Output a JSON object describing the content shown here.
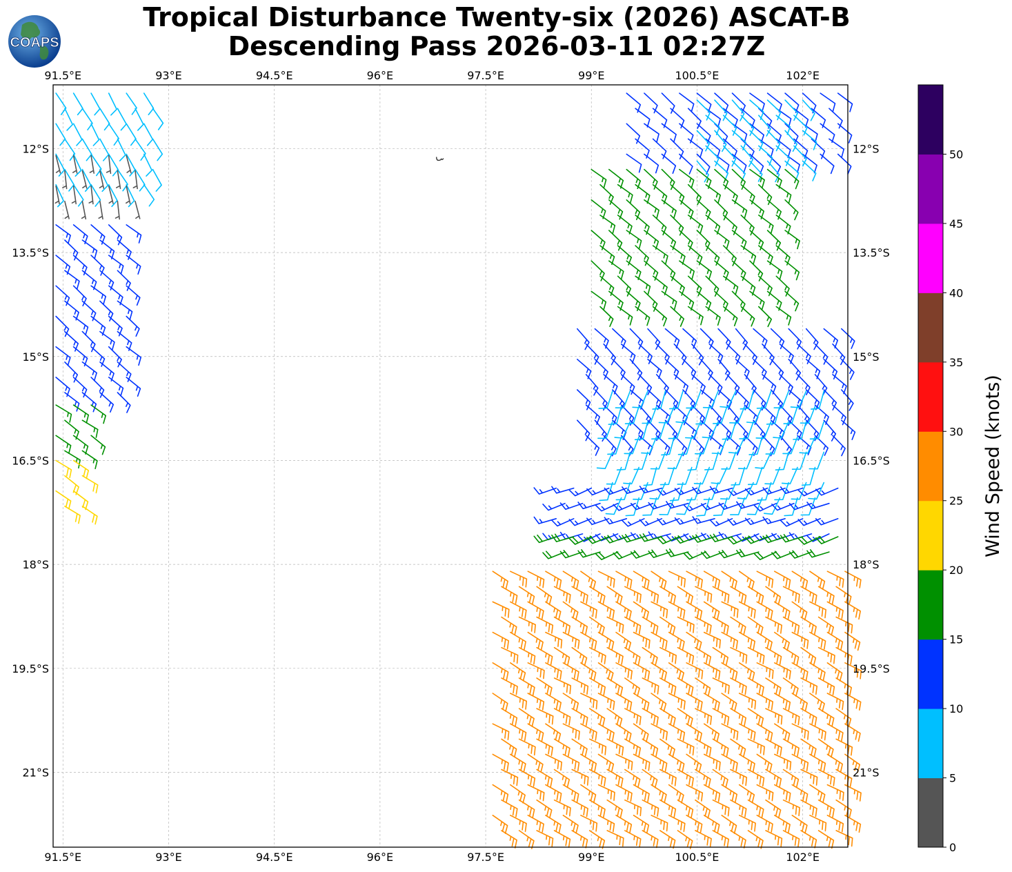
{
  "header": {
    "title_line1": "Tropical Disturbance Twenty-six (2026) ASCAT-B",
    "title_line2": "Descending Pass 2026-03-11 02:27Z",
    "logo_text": "COAPS"
  },
  "map": {
    "lon_range": [
      91.36,
      102.64
    ],
    "lat_range": [
      -22.08,
      -11.08
    ],
    "lon_ticks": [
      {
        "value": 91.5,
        "label": "91.5°E"
      },
      {
        "value": 93.0,
        "label": "93°E"
      },
      {
        "value": 94.5,
        "label": "94.5°E"
      },
      {
        "value": 96.0,
        "label": "96°E"
      },
      {
        "value": 97.5,
        "label": "97.5°E"
      },
      {
        "value": 99.0,
        "label": "99°E"
      },
      {
        "value": 100.5,
        "label": "100.5°E"
      },
      {
        "value": 102.0,
        "label": "102°E"
      }
    ],
    "lat_ticks": [
      {
        "value": -12.0,
        "label": "12°S"
      },
      {
        "value": -13.5,
        "label": "13.5°S"
      },
      {
        "value": -15.0,
        "label": "15°S"
      },
      {
        "value": -16.5,
        "label": "16.5°S"
      },
      {
        "value": -18.0,
        "label": "18°S"
      },
      {
        "value": -19.5,
        "label": "19.5°S"
      },
      {
        "value": -21.0,
        "label": "21°S"
      }
    ],
    "colorbar": {
      "label": "Wind Speed (knots)",
      "bins": [
        {
          "from": 0,
          "to": 5,
          "color": "#555555"
        },
        {
          "from": 5,
          "to": 10,
          "color": "#00bfff"
        },
        {
          "from": 10,
          "to": 15,
          "color": "#0033ff"
        },
        {
          "from": 15,
          "to": 20,
          "color": "#009000"
        },
        {
          "from": 20,
          "to": 25,
          "color": "#ffd700"
        },
        {
          "from": 25,
          "to": 30,
          "color": "#ff8c00"
        },
        {
          "from": 30,
          "to": 35,
          "color": "#ff1010"
        },
        {
          "from": 35,
          "to": 40,
          "color": "#7f3f2a"
        },
        {
          "from": 40,
          "to": 45,
          "color": "#ff00ff"
        },
        {
          "from": 45,
          "to": 50,
          "color": "#8800b0"
        },
        {
          "from": 50,
          "to": 55,
          "color": "#2d0060"
        }
      ],
      "tick_labels": [
        "0",
        "5",
        "10",
        "15",
        "20",
        "25",
        "30",
        "35",
        "40",
        "45",
        "50"
      ]
    },
    "wind_regions": [
      {
        "name": "west-swath-north",
        "lon": [
          91.4,
          92.8
        ],
        "lat": [
          -12.6,
          -11.1
        ],
        "speed_kt": 8,
        "dir_deg": 150
      },
      {
        "name": "west-swath-calm",
        "lon": [
          91.4,
          92.6
        ],
        "lat": [
          -12.9,
          -12.0
        ],
        "speed_kt": 4,
        "dir_deg": 170
      },
      {
        "name": "west-swath-mid",
        "lon": [
          91.4,
          92.5
        ],
        "lat": [
          -15.6,
          -13.0
        ],
        "speed_kt": 13,
        "dir_deg": 130
      },
      {
        "name": "west-swath-green",
        "lon": [
          91.4,
          92.0
        ],
        "lat": [
          -16.4,
          -15.6
        ],
        "speed_kt": 17,
        "dir_deg": 125
      },
      {
        "name": "west-swath-yellow",
        "lon": [
          91.4,
          91.8
        ],
        "lat": [
          -17.3,
          -16.4
        ],
        "speed_kt": 22,
        "dir_deg": 125
      },
      {
        "name": "east-swath-north-blue",
        "lon": [
          99.5,
          102.6
        ],
        "lat": [
          -12.2,
          -11.1
        ],
        "speed_kt": 12,
        "dir_deg": 130
      },
      {
        "name": "east-swath-north-cyan",
        "lon": [
          100.5,
          102.0
        ],
        "lat": [
          -12.4,
          -11.2
        ],
        "speed_kt": 9,
        "dir_deg": 135
      },
      {
        "name": "east-swath-green",
        "lon": [
          99.0,
          101.8
        ],
        "lat": [
          -14.5,
          -12.2
        ],
        "speed_kt": 17,
        "dir_deg": 130
      },
      {
        "name": "east-swath-blue-mid",
        "lon": [
          98.8,
          102.6
        ],
        "lat": [
          -16.2,
          -14.5
        ],
        "speed_kt": 13,
        "dir_deg": 135
      },
      {
        "name": "east-swath-circulation",
        "lon": [
          99.3,
          102.4
        ],
        "lat": [
          -17.1,
          -15.4
        ],
        "speed_kt": 8,
        "dir_deg": 200
      },
      {
        "name": "east-swath-blue-south",
        "lon": [
          98.5,
          102.6
        ],
        "lat": [
          -17.6,
          -16.8
        ],
        "speed_kt": 13,
        "dir_deg": 250
      },
      {
        "name": "east-swath-green-south",
        "lon": [
          98.5,
          102.6
        ],
        "lat": [
          -18.0,
          -17.5
        ],
        "speed_kt": 18,
        "dir_deg": 250
      },
      {
        "name": "east-swath-yellow-orange",
        "lon": [
          97.6,
          102.6
        ],
        "lat": [
          -22.08,
          -18.0
        ],
        "speed_kt": 26,
        "dir_deg": 120
      }
    ],
    "island_marker": {
      "lon": 96.85,
      "lat": -12.15
    }
  }
}
